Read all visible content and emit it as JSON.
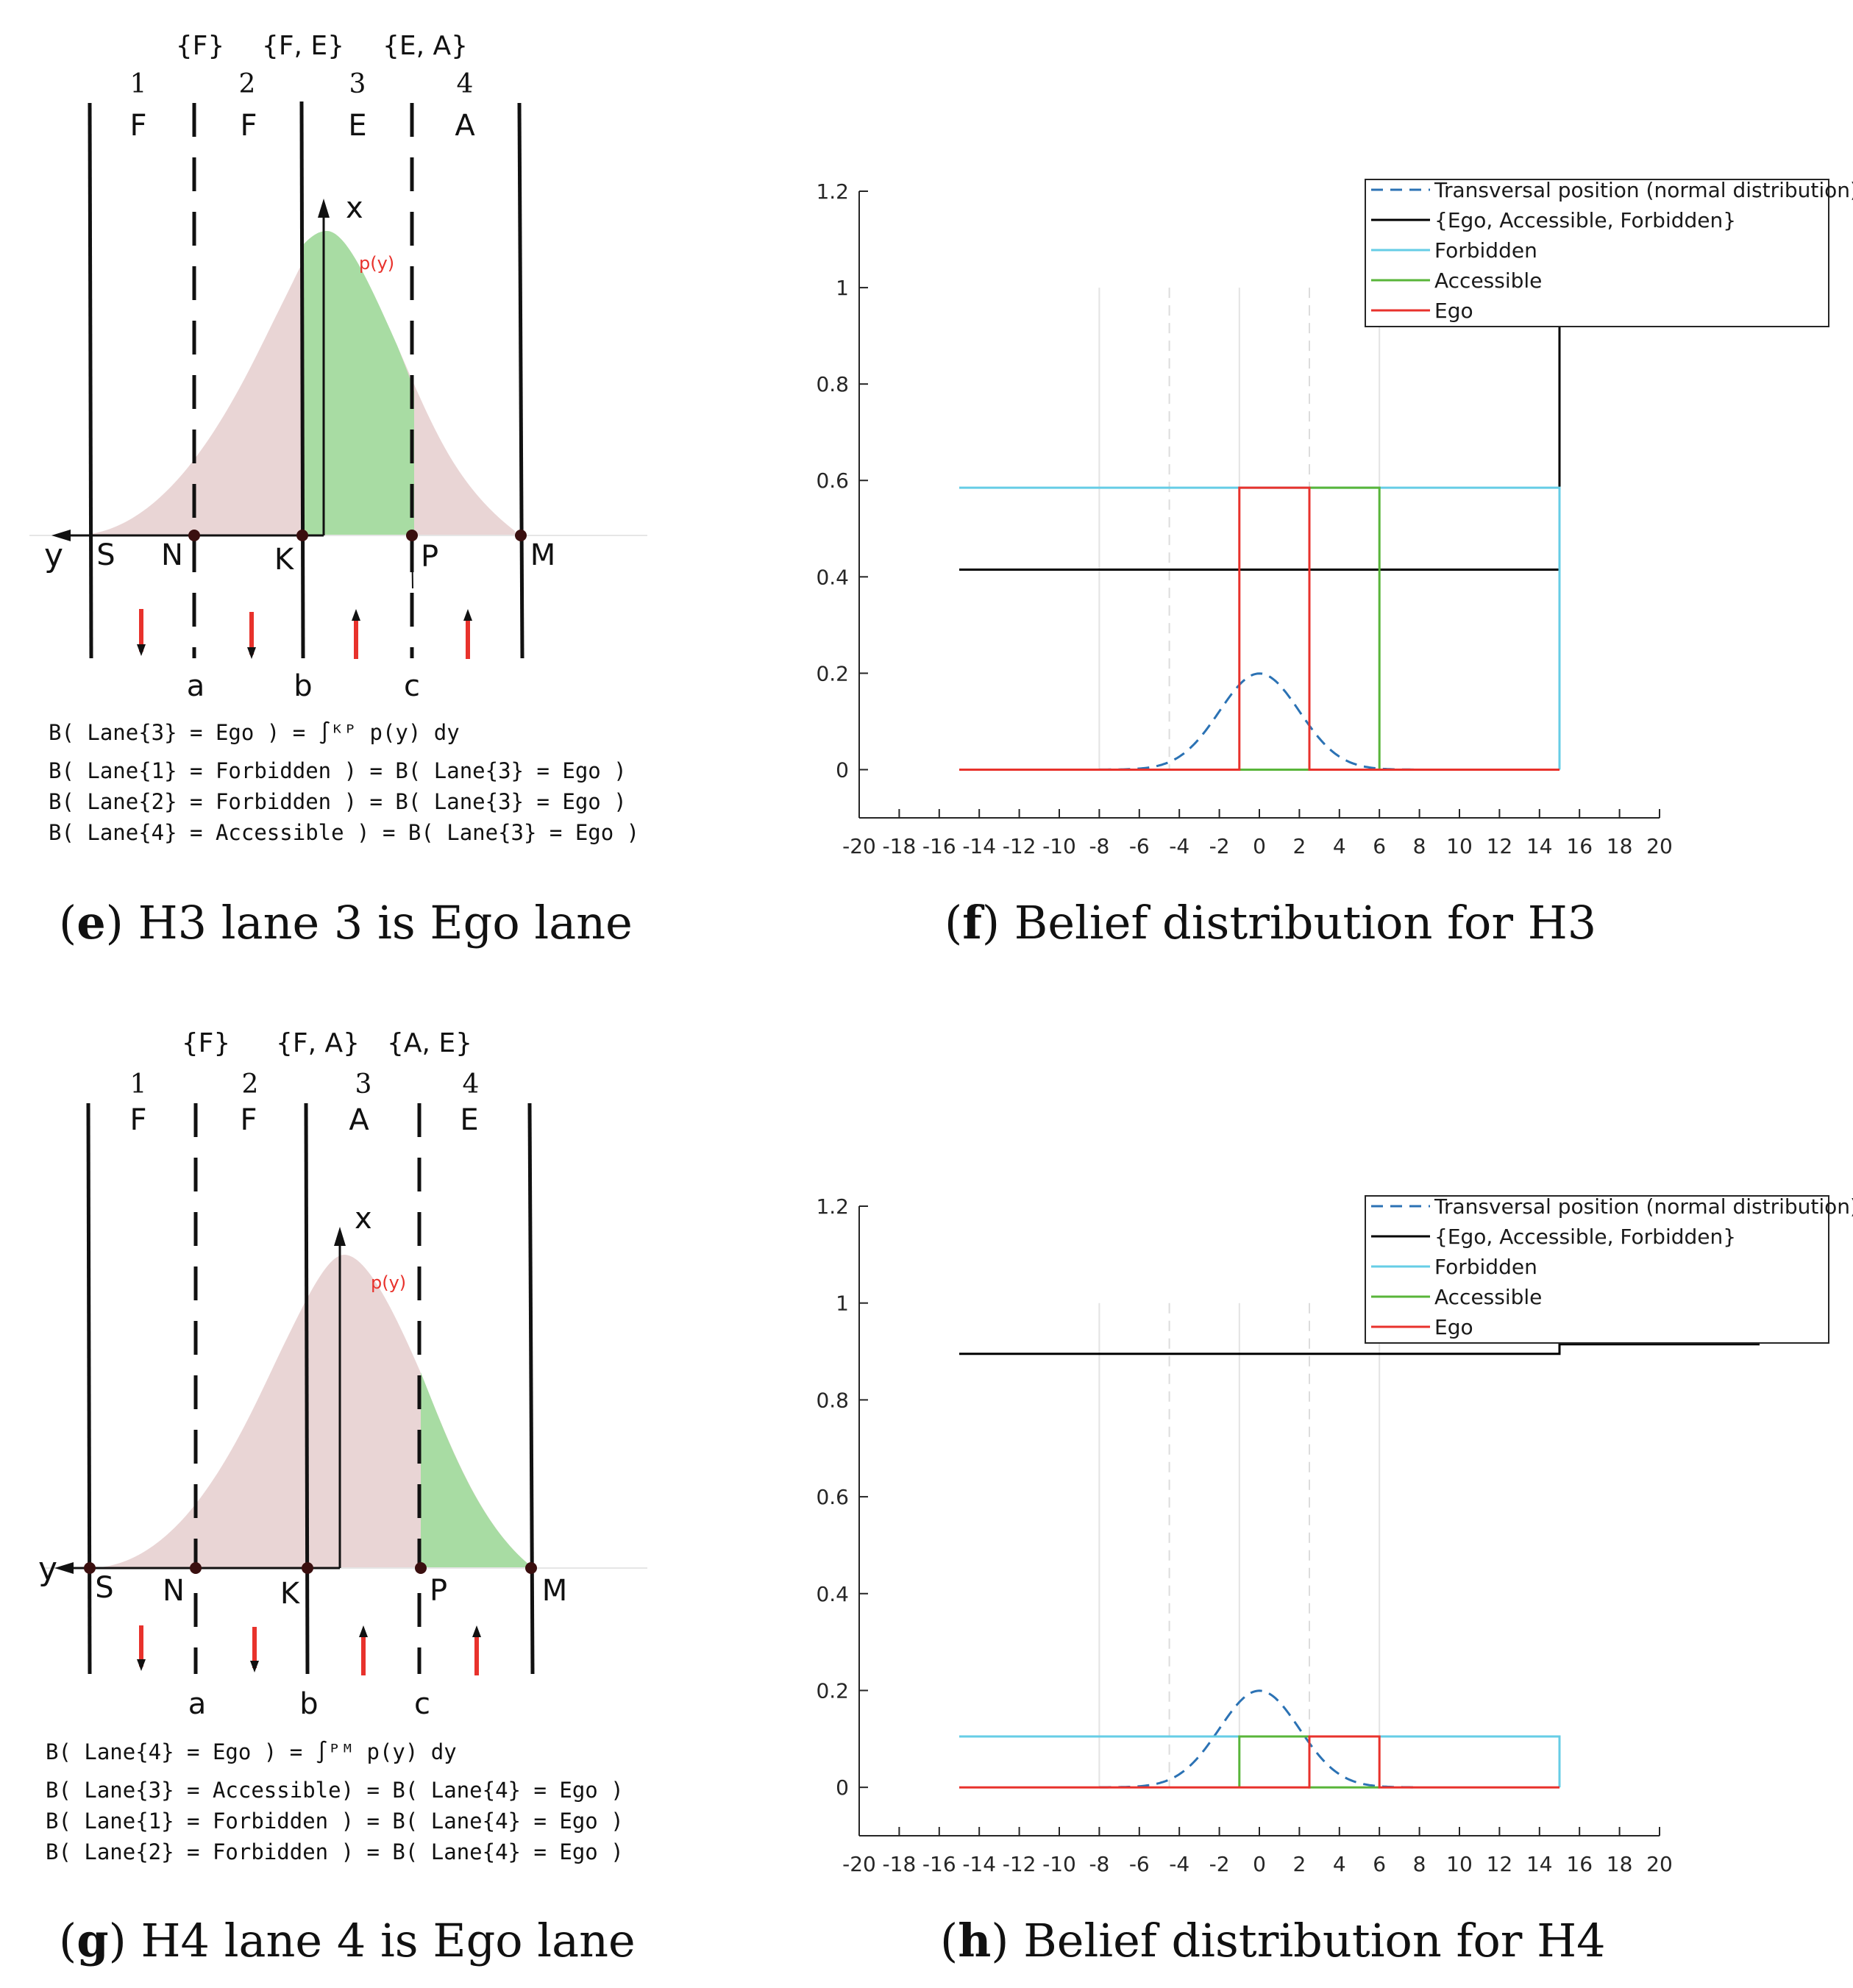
{
  "panels": [
    {
      "id": "e",
      "caption_letter": "e",
      "caption_text": "H3 lane 3 is Ego lane",
      "sets": [
        "{F}",
        "{F, E}",
        "{E, A}"
      ],
      "lane_numbers": [
        "1",
        "2",
        "3",
        "4"
      ],
      "lane_labels": [
        "F",
        "F",
        "E",
        "A"
      ],
      "axis_x": "x",
      "axis_y": "y",
      "density_label": "p(y)",
      "points": [
        "S",
        "N",
        "K",
        "P",
        "M"
      ],
      "boundaries": [
        "a",
        "b",
        "c"
      ],
      "formulas": [
        "B( Lane{3} = Ego ) = ∫ᴷᴾ p(y) dy",
        "B( Lane{1} = Forbidden ) = B( Lane{3} = Ego )",
        "B( Lane{2} = Forbidden ) = B( Lane{3} = Ego )",
        "B( Lane{4} = Accessible ) = B( Lane{3} = Ego )"
      ]
    },
    {
      "id": "g",
      "caption_letter": "g",
      "caption_text": "H4 lane 4 is Ego lane",
      "sets": [
        "{F}",
        "{F, A}",
        "{A, E}"
      ],
      "lane_numbers": [
        "1",
        "2",
        "3",
        "4"
      ],
      "lane_labels": [
        "F",
        "F",
        "A",
        "E"
      ],
      "axis_x": "x",
      "axis_y": "y",
      "density_label": "p(y)",
      "points": [
        "S",
        "N",
        "K",
        "P",
        "M"
      ],
      "boundaries": [
        "a",
        "b",
        "c"
      ],
      "formulas": [
        "B( Lane{4} = Ego ) = ∫ᴾᴹ p(y) dy",
        "B( Lane{3} = Accessible) = B( Lane{4} = Ego )",
        "B( Lane{1} = Forbidden ) = B( Lane{4} = Ego )",
        "B( Lane{2} = Forbidden ) = B( Lane{4} = Ego )"
      ]
    }
  ],
  "chart_data": [
    {
      "id": "f",
      "type": "line",
      "caption_letter": "f",
      "caption_text": "Belief distribution for H3",
      "xlim": [
        -20,
        20
      ],
      "ylim": [
        -0.1,
        1.2
      ],
      "xticks": [
        -20,
        -18,
        -16,
        -14,
        -12,
        -10,
        -8,
        -6,
        -4,
        -2,
        0,
        2,
        4,
        6,
        8,
        10,
        12,
        14,
        16,
        18,
        20
      ],
      "yticks": [
        0,
        0.2,
        0.4,
        0.6,
        0.8,
        1,
        1.2
      ],
      "xtick_labels": [
        "-20",
        "-18",
        "-16",
        "-14",
        "-12",
        "-10",
        "-8",
        "-6",
        "-4",
        "-2",
        "0",
        "2",
        "4",
        "6",
        "8",
        "10",
        "12",
        "14",
        "16",
        "18",
        "20"
      ],
      "ytick_labels": [
        "0",
        "0.2",
        "0.4",
        "0.6",
        "0.8",
        "1",
        "1.2"
      ],
      "legend": [
        "Transversal position (normal distribution)",
        "{Ego, Accessible, Forbidden}",
        "Forbidden",
        "Accessible",
        "Ego"
      ],
      "gridlines_solid": [
        -8,
        -1,
        6
      ],
      "gridlines_dashed": [
        -4.5,
        2.5
      ],
      "normal": {
        "mean": 0,
        "std": 2
      },
      "series": [
        {
          "name": "Transversal position (normal distribution)",
          "color": "#2b72b4",
          "dashed": true
        },
        {
          "name": "{Ego, Accessible, Forbidden}",
          "color": "#000000",
          "x": [
            -15,
            15,
            15,
            25
          ],
          "y": [
            0.415,
            0.415,
            0.92,
            0.92
          ]
        },
        {
          "name": "Forbidden",
          "color": "#66cde6",
          "x": [
            -15,
            15,
            15
          ],
          "y": [
            0.585,
            0.585,
            0
          ]
        },
        {
          "name": "Accessible",
          "color": "#59b53a",
          "x": [
            -1,
            6,
            6
          ],
          "y": [
            0,
            0,
            0
          ]
        },
        {
          "name": "Accessible-step",
          "color": "#59b53a",
          "x": [
            2.5,
            6,
            6
          ],
          "y": [
            0.585,
            0.585,
            0
          ]
        },
        {
          "name": "Ego",
          "color": "#e8322c",
          "x": [
            -15,
            -1,
            -1,
            2.5,
            2.5,
            15
          ],
          "y": [
            0,
            0,
            0.585,
            0.585,
            0,
            0
          ]
        }
      ]
    },
    {
      "id": "h",
      "type": "line",
      "caption_letter": "h",
      "caption_text": "Belief distribution for H4",
      "xlim": [
        -20,
        20
      ],
      "ylim": [
        -0.1,
        1.2
      ],
      "xticks": [
        -20,
        -18,
        -16,
        -14,
        -12,
        -10,
        -8,
        -6,
        -4,
        -2,
        0,
        2,
        4,
        6,
        8,
        10,
        12,
        14,
        16,
        18,
        20
      ],
      "yticks": [
        0,
        0.2,
        0.4,
        0.6,
        0.8,
        1,
        1.2
      ],
      "xtick_labels": [
        "-20",
        "-18",
        "-16",
        "-14",
        "-12",
        "-10",
        "-8",
        "-6",
        "-4",
        "-2",
        "0",
        "2",
        "4",
        "6",
        "8",
        "10",
        "12",
        "14",
        "16",
        "18",
        "20"
      ],
      "ytick_labels": [
        "0",
        "0.2",
        "0.4",
        "0.6",
        "0.8",
        "1",
        "1.2"
      ],
      "legend": [
        "Transversal position (normal distribution)",
        "{Ego, Accessible, Forbidden}",
        "Forbidden",
        "Accessible",
        "Ego"
      ],
      "gridlines_solid": [
        -8,
        -1,
        6
      ],
      "gridlines_dashed": [
        -4.5,
        2.5
      ],
      "normal": {
        "mean": 0,
        "std": 2
      },
      "series": [
        {
          "name": "Transversal position (normal distribution)",
          "color": "#2b72b4",
          "dashed": true
        },
        {
          "name": "{Ego, Accessible, Forbidden}",
          "color": "#000000",
          "x": [
            -15,
            15,
            15,
            25
          ],
          "y": [
            0.895,
            0.895,
            0.915,
            0.915
          ]
        },
        {
          "name": "Forbidden",
          "color": "#66cde6",
          "x": [
            -15,
            15,
            15
          ],
          "y": [
            0.105,
            0.105,
            0
          ]
        },
        {
          "name": "Accessible",
          "color": "#59b53a",
          "x": [
            -1,
            -1,
            2.5,
            2.5,
            6
          ],
          "y": [
            0,
            0.105,
            0.105,
            0,
            0
          ]
        },
        {
          "name": "Ego",
          "color": "#e8322c",
          "x": [
            -15,
            2.5,
            2.5,
            6,
            6,
            15
          ],
          "y": [
            0,
            0,
            0.105,
            0.105,
            0,
            0
          ]
        }
      ]
    }
  ]
}
